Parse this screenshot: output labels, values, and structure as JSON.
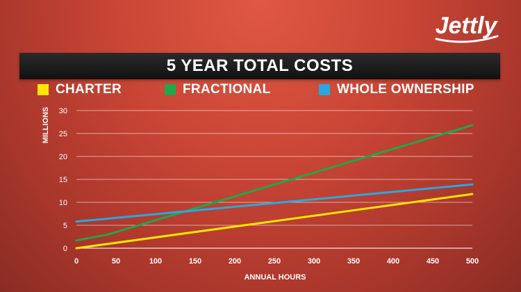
{
  "brand": {
    "logo_text": "Jettly"
  },
  "chart_data": {
    "type": "line",
    "title": "5 YEAR TOTAL COSTS",
    "xlabel": "ANNUAL HOURS",
    "ylabel": "MILLIONS",
    "xlim": [
      0,
      500
    ],
    "ylim": [
      0,
      30
    ],
    "x_ticks": [
      0,
      50,
      100,
      150,
      200,
      250,
      300,
      350,
      400,
      450,
      500
    ],
    "y_ticks": [
      0,
      5,
      10,
      15,
      20,
      25,
      30
    ],
    "grid": true,
    "legend_position": "top",
    "series": [
      {
        "name": "CHARTER",
        "color": "#ffe600",
        "x": [
          0,
          500
        ],
        "values": [
          0,
          11.8
        ]
      },
      {
        "name": "FRACTIONAL",
        "color": "#1ea84a",
        "x": [
          0,
          40,
          500
        ],
        "values": [
          1.7,
          3.0,
          26.8
        ]
      },
      {
        "name": "WHOLE OWNERSHIP",
        "color": "#29a8e0",
        "x": [
          0,
          500
        ],
        "values": [
          5.8,
          13.9
        ]
      }
    ]
  }
}
